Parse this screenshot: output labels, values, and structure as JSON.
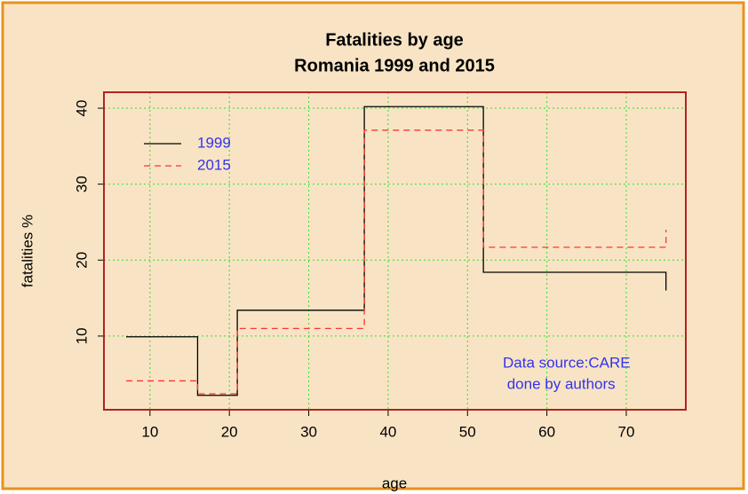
{
  "chart_data": {
    "type": "step",
    "step": "post",
    "title": [
      "Fatalities by age",
      "Romania 1999 and 2015"
    ],
    "xlabel": "age",
    "ylabel": "fatalities %",
    "x": [
      7,
      16,
      21,
      37,
      52,
      75
    ],
    "series": [
      {
        "name": "1999",
        "color": "#000000",
        "linestyle": "solid",
        "values": [
          9.9,
          2.2,
          13.4,
          40.2,
          18.4,
          16.0
        ]
      },
      {
        "name": "2015",
        "color": "#ff3333",
        "linestyle": "dashed",
        "values": [
          4.1,
          2.4,
          11.0,
          37.1,
          21.7,
          24.0
        ]
      }
    ],
    "xlim": [
      4.2,
      77.5
    ],
    "ylim": [
      0.3,
      42.1
    ],
    "xticks": [
      10,
      20,
      30,
      40,
      50,
      60,
      70
    ],
    "yticks": [
      10,
      20,
      30,
      40
    ],
    "grid": true,
    "grid_color": "#33dd33",
    "legend": "top-left",
    "annotation": [
      "Data source:CARE",
      " done by authors"
    ]
  }
}
